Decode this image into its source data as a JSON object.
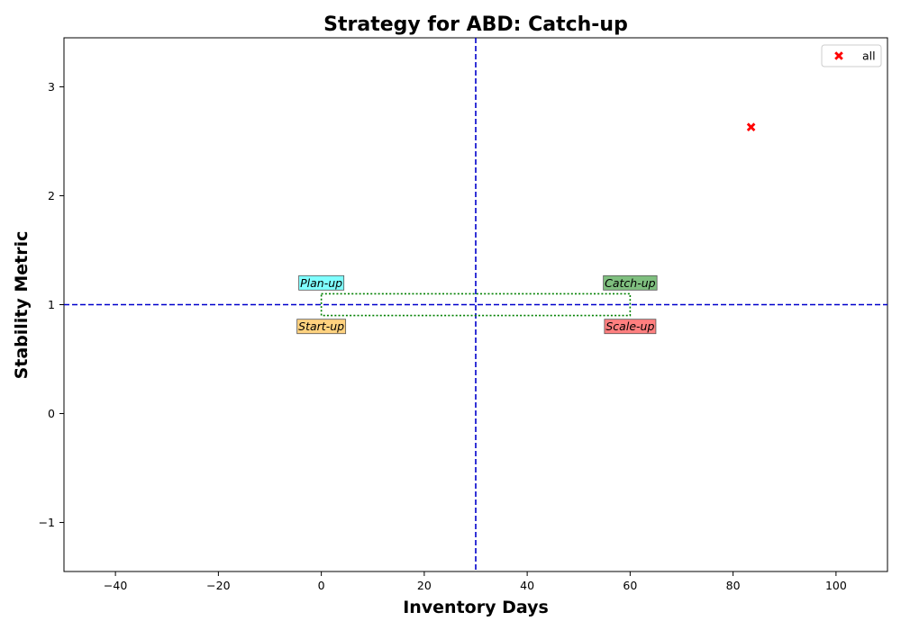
{
  "chart_data": {
    "type": "scatter",
    "title": "Strategy for ABD: Catch-up",
    "xlabel": "Inventory Days",
    "ylabel": "Stability Metric",
    "xlim": [
      -50,
      110
    ],
    "ylim": [
      -1.45,
      3.45
    ],
    "xticks": [
      {
        "value": -40,
        "label": "−40"
      },
      {
        "value": -20,
        "label": "−20"
      },
      {
        "value": 0,
        "label": "0"
      },
      {
        "value": 20,
        "label": "20"
      },
      {
        "value": 40,
        "label": "40"
      },
      {
        "value": 60,
        "label": "60"
      },
      {
        "value": 80,
        "label": "80"
      },
      {
        "value": 100,
        "label": "100"
      }
    ],
    "yticks": [
      {
        "value": -1,
        "label": "−1"
      },
      {
        "value": 0,
        "label": "0"
      },
      {
        "value": 1,
        "label": "1"
      },
      {
        "value": 2,
        "label": "2"
      },
      {
        "value": 3,
        "label": "3"
      }
    ],
    "series": [
      {
        "name": "all",
        "color": "#ff0000",
        "marker": "X",
        "points": [
          {
            "x": 83.5,
            "y": 2.63
          }
        ]
      }
    ],
    "reference_lines": {
      "vertical_x": 30,
      "horizontal_y": 1,
      "color": "#0000cc",
      "style": "dashed"
    },
    "threshold_box": {
      "x": [
        0,
        60
      ],
      "y": [
        0.9,
        1.1
      ],
      "color": "#008000",
      "style": "dotted"
    },
    "quadrant_labels": [
      {
        "text": "Plan-up",
        "x": 0,
        "y": 1.2,
        "color": "#00ffff"
      },
      {
        "text": "Catch-up",
        "x": 60,
        "y": 1.2,
        "color": "#008000"
      },
      {
        "text": "Start-up",
        "x": 0,
        "y": 0.8,
        "color": "#ffa500"
      },
      {
        "text": "Scale-up",
        "x": 60,
        "y": 0.8,
        "color": "#ff0000"
      }
    ],
    "legend": {
      "position": "top-right",
      "entries": [
        {
          "label": "all",
          "color": "#ff0000",
          "marker": "X"
        }
      ]
    },
    "grid": false
  }
}
